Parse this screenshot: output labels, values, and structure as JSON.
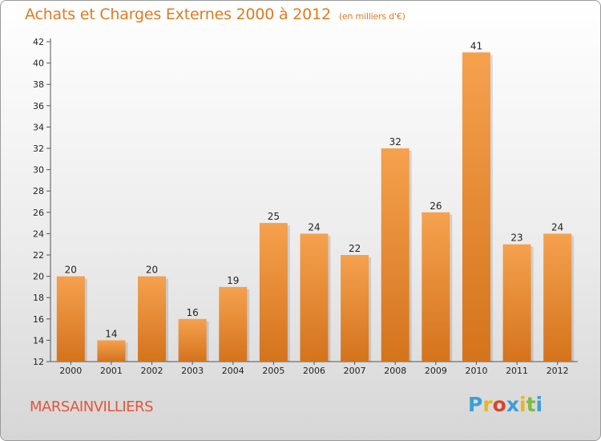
{
  "header": {
    "title": "Achats et Charges Externes 2000 à 2012",
    "subtitle": "(en milliers d'€)"
  },
  "footer": {
    "commune": "MARSAINVILLIERS",
    "logo_letters": [
      "P",
      "r",
      "o",
      "x",
      "i",
      "t",
      "i"
    ],
    "logo_colors": [
      "#3a9fd8",
      "#e8b521",
      "#d9442e",
      "#3a9fd8",
      "#e8b521",
      "#7dbb3c",
      "#3a9fd8"
    ]
  },
  "colors": {
    "bar_light": "#f5a14e",
    "bar_dark": "#d4731c",
    "title": "#e07a1e",
    "commune": "#e4553a"
  },
  "chart_data": {
    "type": "bar",
    "title": "Achats et Charges Externes 2000 à 2012",
    "subtitle": "(en milliers d'€)",
    "categories": [
      "2000",
      "2001",
      "2002",
      "2003",
      "2004",
      "2005",
      "2006",
      "2007",
      "2008",
      "2009",
      "2010",
      "2011",
      "2012"
    ],
    "values": [
      20,
      14,
      20,
      16,
      19,
      25,
      24,
      22,
      32,
      26,
      41,
      23,
      24
    ],
    "ylim": [
      12,
      42
    ],
    "yticks": [
      12,
      14,
      16,
      18,
      20,
      22,
      24,
      26,
      28,
      30,
      32,
      34,
      36,
      38,
      40,
      42
    ],
    "grid": false,
    "data_labels": true
  }
}
